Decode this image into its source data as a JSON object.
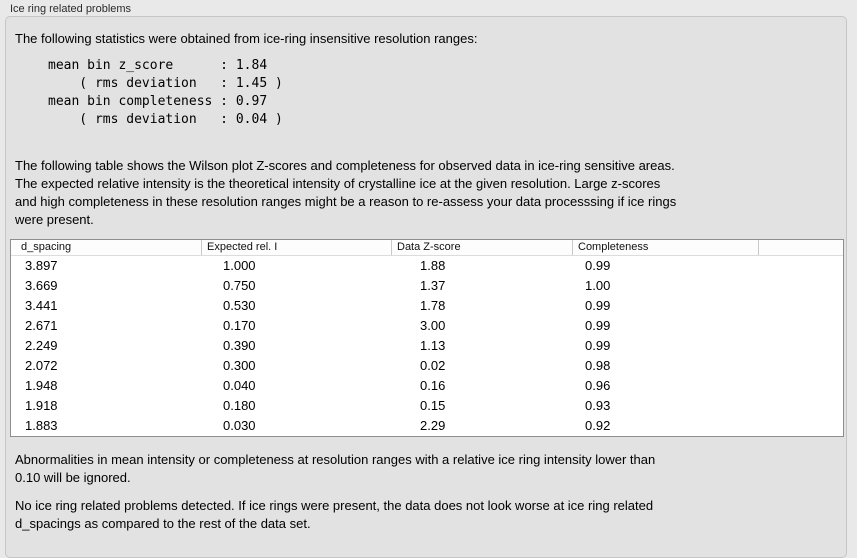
{
  "colors": {
    "window_bg": "#e9e9e9",
    "panel_bg": "#e2e2e2",
    "table_bg": "#ffffff"
  },
  "panel": {
    "title": "Ice ring related problems"
  },
  "intro": "The following statistics were obtained from ice-ring insensitive resolution ranges:",
  "stats_block": "mean bin z_score      : 1.84\n    ( rms deviation   : 1.45 )\nmean bin completeness : 0.97\n    ( rms deviation   : 0.04 )",
  "table_intro": "The following table shows the Wilson plot Z-scores and completeness for observed data in ice-ring sensitive areas.\nThe expected relative intensity is the theoretical intensity of crystalline ice at the given resolution. Large z-scores\nand high completeness in these resolution ranges might be a reason to re-assess your data processsing if ice rings\nwere present.",
  "table": {
    "columns": [
      "d_spacing",
      "Expected rel. I",
      "Data Z-score",
      "Completeness",
      ""
    ],
    "rows": [
      [
        "3.897",
        "1.000",
        "1.88",
        "0.99"
      ],
      [
        "3.669",
        "0.750",
        "1.37",
        "1.00"
      ],
      [
        "3.441",
        "0.530",
        "1.78",
        "0.99"
      ],
      [
        "2.671",
        "0.170",
        "3.00",
        "0.99"
      ],
      [
        "2.249",
        "0.390",
        "1.13",
        "0.99"
      ],
      [
        "2.072",
        "0.300",
        "0.02",
        "0.98"
      ],
      [
        "1.948",
        "0.040",
        "0.16",
        "0.96"
      ],
      [
        "1.918",
        "0.180",
        "0.15",
        "0.93"
      ],
      [
        "1.883",
        "0.030",
        "2.29",
        "0.92"
      ]
    ]
  },
  "ignore_note": "Abnormalities in mean intensity or completeness at resolution ranges with a relative ice ring intensity lower than\n0.10 will be ignored.",
  "conclusion": "No ice ring related problems detected. If ice rings were present, the data does not look worse at ice ring related\nd_spacings as compared to the rest of the data set."
}
